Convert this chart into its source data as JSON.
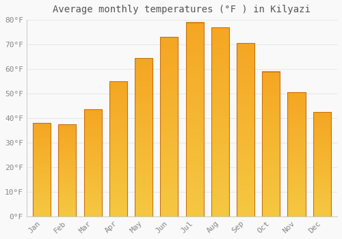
{
  "title": "Average monthly temperatures (°F ) in Kilyazi",
  "months": [
    "Jan",
    "Feb",
    "Mar",
    "Apr",
    "May",
    "Jun",
    "Jul",
    "Aug",
    "Sep",
    "Oct",
    "Nov",
    "Dec"
  ],
  "values": [
    38,
    37.5,
    43.5,
    55,
    64.5,
    73,
    79,
    77,
    70.5,
    59,
    50.5,
    42.5
  ],
  "bar_color_top": "#F5A623",
  "bar_color_bottom": "#F5C842",
  "bar_edge_color": "#C87010",
  "ylim": [
    0,
    80
  ],
  "yticks": [
    0,
    10,
    20,
    30,
    40,
    50,
    60,
    70,
    80
  ],
  "ytick_labels": [
    "0°F",
    "10°F",
    "20°F",
    "30°F",
    "40°F",
    "50°F",
    "60°F",
    "70°F",
    "80°F"
  ],
  "background_color": "#f9f9f9",
  "grid_color": "#e8e8e8",
  "title_fontsize": 10,
  "tick_fontsize": 8,
  "tick_color": "#888888",
  "font_family": "monospace",
  "bar_width": 0.7,
  "figsize": [
    5.0,
    3.5
  ],
  "dpi": 100
}
